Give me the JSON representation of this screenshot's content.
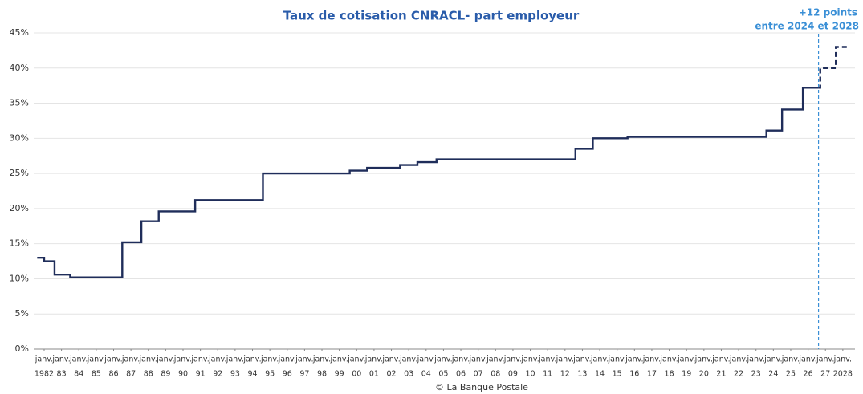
{
  "chart_data": {
    "type": "step",
    "title": "Taux de cotisation CNRACL- part employeur",
    "annotation": [
      "+12 points",
      "entre 2024 et 2028"
    ],
    "annotation_x": 2026.6,
    "source": "© La Banque Postale",
    "xtick_prefix": "janv.",
    "xlim": [
      1981.4,
      2028.7
    ],
    "xticks": [
      {
        "value": 1982,
        "label": "1982"
      },
      {
        "value": 1983,
        "label": "83"
      },
      {
        "value": 1984,
        "label": "84"
      },
      {
        "value": 1985,
        "label": "85"
      },
      {
        "value": 1986,
        "label": "86"
      },
      {
        "value": 1987,
        "label": "87"
      },
      {
        "value": 1988,
        "label": "88"
      },
      {
        "value": 1989,
        "label": "89"
      },
      {
        "value": 1990,
        "label": "90"
      },
      {
        "value": 1991,
        "label": "91"
      },
      {
        "value": 1992,
        "label": "92"
      },
      {
        "value": 1993,
        "label": "93"
      },
      {
        "value": 1994,
        "label": "94"
      },
      {
        "value": 1995,
        "label": "95"
      },
      {
        "value": 1996,
        "label": "96"
      },
      {
        "value": 1997,
        "label": "97"
      },
      {
        "value": 1998,
        "label": "98"
      },
      {
        "value": 1999,
        "label": "99"
      },
      {
        "value": 2000,
        "label": "00"
      },
      {
        "value": 2001,
        "label": "01"
      },
      {
        "value": 2002,
        "label": "02"
      },
      {
        "value": 2003,
        "label": "03"
      },
      {
        "value": 2004,
        "label": "04"
      },
      {
        "value": 2005,
        "label": "05"
      },
      {
        "value": 2006,
        "label": "06"
      },
      {
        "value": 2007,
        "label": "07"
      },
      {
        "value": 2008,
        "label": "08"
      },
      {
        "value": 2009,
        "label": "09"
      },
      {
        "value": 2010,
        "label": "10"
      },
      {
        "value": 2011,
        "label": "11"
      },
      {
        "value": 2012,
        "label": "12"
      },
      {
        "value": 2013,
        "label": "13"
      },
      {
        "value": 2014,
        "label": "14"
      },
      {
        "value": 2015,
        "label": "15"
      },
      {
        "value": 2016,
        "label": "16"
      },
      {
        "value": 2017,
        "label": "17"
      },
      {
        "value": 2018,
        "label": "18"
      },
      {
        "value": 2019,
        "label": "19"
      },
      {
        "value": 2020,
        "label": "20"
      },
      {
        "value": 2021,
        "label": "21"
      },
      {
        "value": 2022,
        "label": "22"
      },
      {
        "value": 2023,
        "label": "23"
      },
      {
        "value": 2024,
        "label": "24"
      },
      {
        "value": 2025,
        "label": "25"
      },
      {
        "value": 2026,
        "label": "26"
      },
      {
        "value": 2027,
        "label": "27"
      },
      {
        "value": 2028,
        "label": "2028"
      }
    ],
    "ylim": [
      0,
      45
    ],
    "yticks": [
      {
        "value": 0,
        "label": "0%"
      },
      {
        "value": 5,
        "label": "5%"
      },
      {
        "value": 10,
        "label": "10%"
      },
      {
        "value": 15,
        "label": "15%"
      },
      {
        "value": 20,
        "label": "20%"
      },
      {
        "value": 25,
        "label": "25%"
      },
      {
        "value": 30,
        "label": "30%"
      },
      {
        "value": 35,
        "label": "35%"
      },
      {
        "value": 40,
        "label": "40%"
      },
      {
        "value": 45,
        "label": "45%"
      }
    ],
    "grid": true,
    "series": [
      {
        "color": "#1f2d5a",
        "dashed": false,
        "x": [
          1981.6,
          1982.0,
          1982.6,
          1983.5,
          1986.5,
          1987.6,
          1988.6,
          1990.7,
          1994.6,
          1999.6,
          2000.6,
          2002.5,
          2003.5,
          2004.6,
          2012.6,
          2013.6,
          2015.6,
          2023.6,
          2024.5,
          2025.7,
          2026.6
        ],
        "values": [
          13.0,
          12.5,
          10.6,
          10.2,
          15.2,
          18.2,
          19.6,
          21.2,
          25.0,
          25.4,
          25.8,
          26.2,
          26.6,
          27.0,
          28.5,
          30.0,
          30.2,
          31.1,
          34.1,
          37.2,
          37.2
        ]
      },
      {
        "color": "#1f2d5a",
        "dashed": true,
        "x": [
          2026.6,
          2026.7,
          2027.6,
          2028.4
        ],
        "values": [
          37.2,
          40.0,
          43.0,
          43.0
        ]
      }
    ]
  }
}
